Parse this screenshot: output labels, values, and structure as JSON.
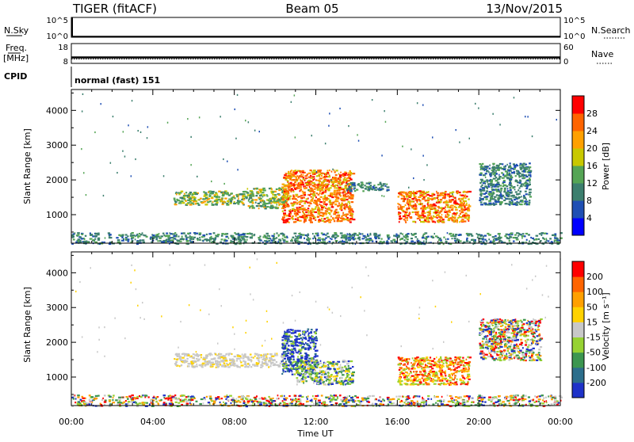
{
  "header": {
    "station": "TIGER (fitACF)",
    "beam": "Beam 05",
    "date": "13/Nov/2015"
  },
  "noise_panel": {
    "left_label": "N.Sky",
    "right_label": "N.Search",
    "left_ticks": [
      "10^5",
      "10^0"
    ],
    "right_ticks": [
      "10^5",
      "10^0"
    ]
  },
  "freq_panel": {
    "left_label_top": "Freq.",
    "left_label_unit": "[MHz]",
    "right_label": "Nave",
    "left_ticks": [
      "18",
      "8"
    ],
    "right_ticks": [
      "60",
      "0"
    ]
  },
  "cpid_panel": {
    "label": "CPID",
    "text": "normal (fast) 151"
  },
  "chart_data": [
    {
      "type": "heatmap",
      "name": "power",
      "ylabel": "Slant Range [km]",
      "ylim": [
        180,
        4600
      ],
      "yticks": [
        1000,
        2000,
        3000,
        4000
      ],
      "xlim_hours": [
        0,
        24
      ],
      "colorbar": {
        "label": "Power [dB]",
        "ticks": [
          "28",
          "24",
          "20",
          "16",
          "12",
          "8",
          "4"
        ],
        "colors": [
          "#0000ff",
          "#1f4fb4",
          "#3c7f6e",
          "#55a555",
          "#c8c800",
          "#ffa000",
          "#ff6400",
          "#ff0000"
        ]
      },
      "regions": [
        {
          "t0": 5.0,
          "t1": 8.5,
          "r0": 1300,
          "r1": 1700,
          "level": "mid"
        },
        {
          "t0": 8.5,
          "t1": 10.5,
          "r0": 1200,
          "r1": 1800,
          "level": "mid"
        },
        {
          "t0": 10.3,
          "t1": 13.8,
          "r0": 800,
          "r1": 2300,
          "level": "high"
        },
        {
          "t0": 13.5,
          "t1": 15.5,
          "r0": 1700,
          "r1": 1950,
          "level": "low"
        },
        {
          "t0": 16.0,
          "t1": 19.5,
          "r0": 800,
          "r1": 1700,
          "level": "high"
        },
        {
          "t0": 20.0,
          "t1": 22.5,
          "r0": 1300,
          "r1": 2500,
          "level": "low"
        },
        {
          "t0": 0.0,
          "t1": 24.0,
          "r0": 180,
          "r1": 500,
          "level": "low"
        }
      ]
    },
    {
      "type": "heatmap",
      "name": "velocity",
      "ylabel": "Slant Range [km]",
      "ylim": [
        180,
        4600
      ],
      "yticks": [
        1000,
        2000,
        3000,
        4000
      ],
      "xlim_hours": [
        0,
        24
      ],
      "xlabel": "Time UT",
      "xtick_labels": [
        "00:00",
        "04:00",
        "08:00",
        "12:00",
        "16:00",
        "20:00",
        "00:00"
      ],
      "colorbar": {
        "label": "Velocity [m s⁻¹]",
        "ticks": [
          "200",
          "100",
          "50",
          "15",
          "-15",
          "-50",
          "-100",
          "-200"
        ],
        "colors": [
          "#1e32c8",
          "#2c6e8c",
          "#3c9650",
          "#96d232",
          "#c8c8c8",
          "#ffd200",
          "#ffa000",
          "#ff6400",
          "#ff0000"
        ]
      },
      "regions": [
        {
          "t0": 5.0,
          "t1": 10.5,
          "r0": 1300,
          "r1": 1700,
          "level": "grey"
        },
        {
          "t0": 10.3,
          "t1": 12.0,
          "r0": 1100,
          "r1": 2400,
          "level": "blue"
        },
        {
          "t0": 11.0,
          "t1": 13.8,
          "r0": 800,
          "r1": 1500,
          "level": "green"
        },
        {
          "t0": 16.0,
          "t1": 19.5,
          "r0": 800,
          "r1": 1600,
          "level": "red"
        },
        {
          "t0": 20.0,
          "t1": 23.0,
          "r0": 1500,
          "r1": 2700,
          "level": "mixed"
        },
        {
          "t0": 0.0,
          "t1": 24.0,
          "r0": 180,
          "r1": 500,
          "level": "mixed"
        }
      ]
    }
  ]
}
